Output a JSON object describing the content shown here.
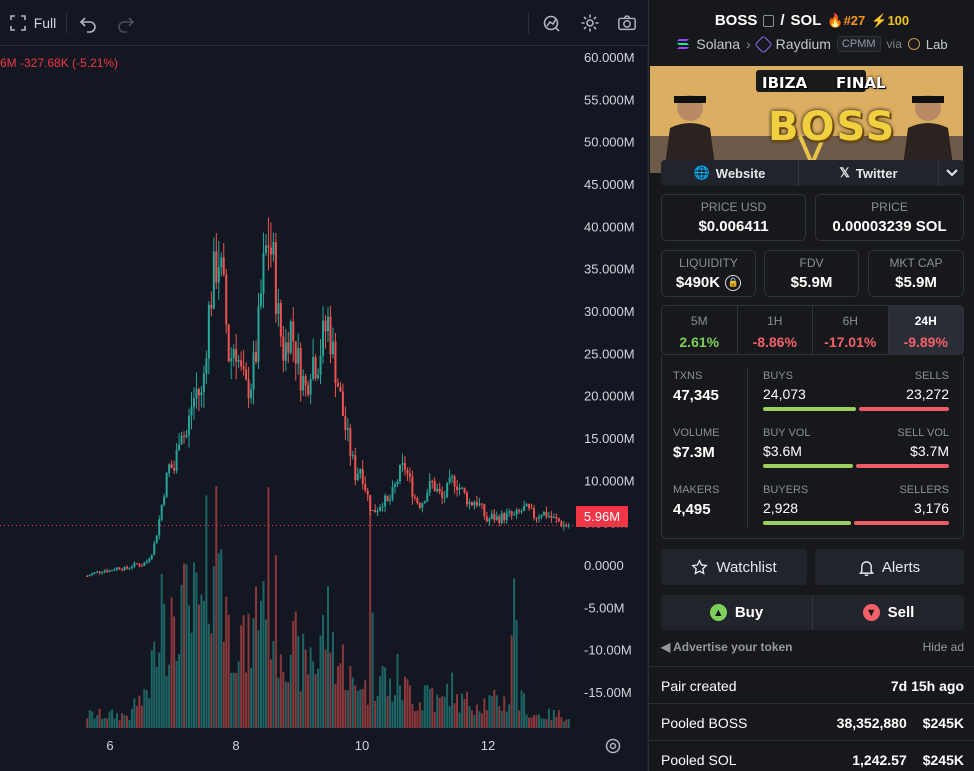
{
  "toolbar": {
    "full_label": "Full",
    "icons": [
      "fullscreen-icon",
      "undo-icon",
      "redo-icon",
      "indicator-icon",
      "gear-icon",
      "camera-icon"
    ]
  },
  "legend": {
    "change_text": "6M -327.68K (-5.21%)"
  },
  "chart_data": {
    "type": "candlestick",
    "y_axis_labels": [
      "60.000M",
      "55.000M",
      "50.000M",
      "45.000M",
      "40.000M",
      "35.000M",
      "30.000M",
      "25.000M",
      "20.000M",
      "15.000M",
      "10.000M",
      "5.000M",
      "0.0000",
      "-5.00M",
      "-10.00M",
      "-15.00M"
    ],
    "ylim": [
      -18,
      60
    ],
    "x_ticks": [
      "6",
      "8",
      "10",
      "12"
    ],
    "current_price_label": "5.96M",
    "current_value": 5.96,
    "up_color": "#26a69a",
    "down_color": "#ef5350",
    "price_path": [
      0.0,
      0.3,
      0.5,
      0.7,
      0.6,
      0.9,
      1.0,
      0.8,
      1.2,
      1.4,
      1.3,
      1.8,
      3.0,
      6.0,
      10.0,
      13.0,
      12.5,
      18.0,
      16.0,
      20.0,
      22.0,
      21.0,
      30.0,
      35.0,
      38.0,
      33.0,
      25.0,
      28.0,
      24.0,
      22.0,
      23.0,
      27.0,
      35.0,
      40.0,
      37.0,
      30.0,
      26.0,
      30.0,
      27.0,
      24.0,
      22.0,
      26.0,
      25.0,
      28.0,
      30.0,
      26.0,
      22.0,
      18.0,
      15.0,
      12.0,
      13.0,
      10.0,
      7.5,
      8.0,
      9.0,
      8.5,
      10.0,
      12.0,
      13.0,
      11.0,
      9.0,
      8.5,
      10.0,
      11.0,
      10.0,
      9.0,
      10.5,
      11.5,
      10.5,
      9.5,
      8.5,
      9.0,
      8.0,
      6.5,
      7.0,
      6.8,
      7.0,
      7.2,
      7.0,
      7.5,
      8.0,
      7.5,
      7.0,
      7.5,
      7.3,
      6.8,
      6.5,
      6.0,
      5.96
    ],
    "volume_profile": [
      1,
      1,
      1,
      1,
      1,
      1,
      1,
      1,
      1,
      2,
      2,
      3,
      5,
      9,
      12,
      8,
      6,
      10,
      9,
      8,
      9,
      8,
      12,
      14,
      15,
      10,
      7,
      8,
      7,
      6,
      7,
      9,
      11,
      13,
      9,
      7,
      6,
      7,
      6,
      5,
      5,
      6,
      5,
      7,
      8,
      6,
      5,
      5,
      4,
      3,
      4,
      3,
      13,
      4,
      4,
      3,
      3,
      4,
      3,
      3,
      2,
      2,
      3,
      3,
      2,
      2,
      3,
      3,
      2,
      2,
      2,
      2,
      2,
      2,
      2,
      2,
      2,
      2,
      9,
      2,
      2,
      1,
      1,
      1,
      1,
      1,
      1,
      1,
      1
    ]
  },
  "pair": {
    "base": "BOSS",
    "quote": "SOL",
    "rank": "#27",
    "boost": "100",
    "chain": "Solana",
    "dex": "Raydium",
    "dex_type": "CPMM",
    "via_label": "via",
    "via": "Lab"
  },
  "banner": {
    "line1": "IBIZA",
    "line2": "FINAL",
    "line3": "BOSS"
  },
  "links": {
    "website": "Website",
    "twitter": "Twitter"
  },
  "stats": {
    "price_usd_label": "PRICE USD",
    "price_usd": "$0.006411",
    "price_native_label": "PRICE",
    "price_native": "0.00003239 SOL",
    "liquidity_label": "LIQUIDITY",
    "liquidity": "$490K",
    "fdv_label": "FDV",
    "fdv": "$5.9M",
    "mcap_label": "MKT CAP",
    "mcap": "$5.9M"
  },
  "timeframes": [
    {
      "label": "5M",
      "value": "2.61%",
      "dir": "pos"
    },
    {
      "label": "1H",
      "value": "-8.86%",
      "dir": "neg"
    },
    {
      "label": "6H",
      "value": "-17.01%",
      "dir": "neg"
    },
    {
      "label": "24H",
      "value": "-9.89%",
      "dir": "neg"
    }
  ],
  "txns": {
    "txns_label": "TXNS",
    "txns": "47,345",
    "buys_label": "BUYS",
    "buys": "24,073",
    "sells_label": "SELLS",
    "sells": "23,272",
    "buys_fraction": 0.51,
    "volume_label": "VOLUME",
    "volume": "$7.3M",
    "buy_vol_label": "BUY VOL",
    "buy_vol": "$3.6M",
    "sell_vol_label": "SELL VOL",
    "sell_vol": "$3.7M",
    "buy_vol_fraction": 0.49,
    "makers_label": "MAKERS",
    "makers": "4,495",
    "buyers_label": "BUYERS",
    "buyers": "2,928",
    "sellers_label": "SELLERS",
    "sellers": "3,176",
    "buyers_fraction": 0.48
  },
  "actions": {
    "watchlist": "Watchlist",
    "alerts": "Alerts",
    "buy": "Buy",
    "sell": "Sell",
    "advertise": "Advertise your token",
    "hide_ad": "Hide ad"
  },
  "info": {
    "created_label": "Pair created",
    "created_value": "7d 15h ago",
    "pooled_base_label": "Pooled BOSS",
    "pooled_base_amount": "38,352,880",
    "pooled_base_usd": "$245K",
    "pooled_quote_label": "Pooled SOL",
    "pooled_quote_amount": "1,242.57",
    "pooled_quote_usd": "$245K"
  }
}
